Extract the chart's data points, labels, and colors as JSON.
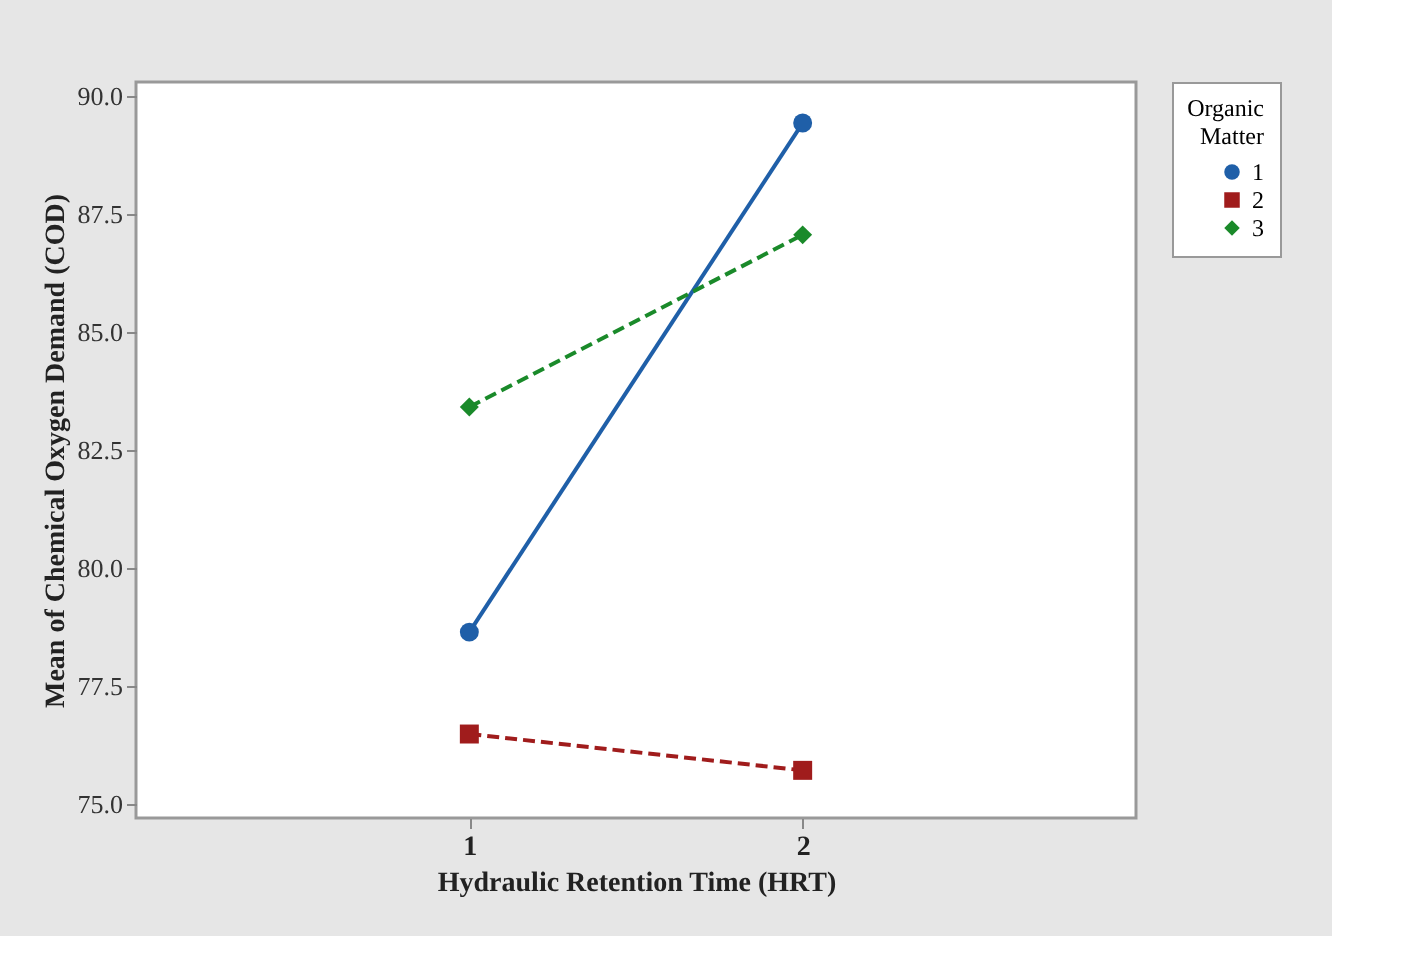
{
  "chart_data": {
    "type": "line",
    "xlabel": "Hydraulic Retention Time (HRT)",
    "ylabel": "Mean of Chemical Oxygen Demand (COD)",
    "legend_title": "Organic Matter",
    "categories": [
      "1",
      "2"
    ],
    "series": [
      {
        "name": "1",
        "color": "#1f5fa8",
        "values": [
          78.64,
          89.43
        ],
        "marker": "circle",
        "line_style": "solid"
      },
      {
        "name": "2",
        "color": "#a01c1c",
        "values": [
          76.48,
          75.71
        ],
        "marker": "square",
        "line_style": "dashed"
      },
      {
        "name": "3",
        "color": "#1a8a2a",
        "values": [
          83.41,
          87.06
        ],
        "marker": "diamond",
        "line_style": "dashed"
      }
    ],
    "ylim": [
      74.7,
      90.3
    ],
    "yticks": [
      {
        "value": 75,
        "label": "75.0"
      },
      {
        "value": 77.5,
        "label": "77.5"
      },
      {
        "value": 80,
        "label": "80.0"
      },
      {
        "value": 82.5,
        "label": "82.5"
      },
      {
        "value": 85,
        "label": "85.0"
      },
      {
        "value": 87.5,
        "label": "87.5"
      },
      {
        "value": 90,
        "label": "90.0"
      }
    ],
    "grid": false,
    "legend": "right"
  }
}
